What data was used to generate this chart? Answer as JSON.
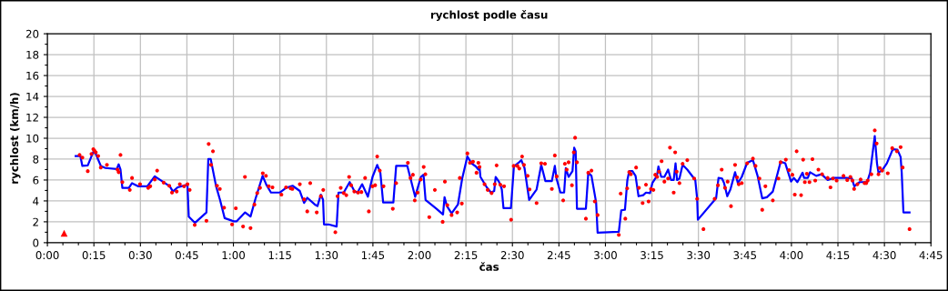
{
  "chart_data": {
    "type": "line",
    "title": "rychlost podle času",
    "xlabel": "čas",
    "ylabel": "rychlost (km/h)",
    "xlim": [
      0,
      4.75
    ],
    "ylim": [
      0,
      20
    ],
    "xticks": [
      {
        "value": 0,
        "label": "0:00"
      },
      {
        "value": 0.0833,
        "label": null
      },
      {
        "value": 0.1667,
        "label": null
      },
      {
        "value": 0.25,
        "label": "0:15"
      },
      {
        "value": 0.3333,
        "label": null
      },
      {
        "value": 0.4167,
        "label": null
      },
      {
        "value": 0.5,
        "label": "0:30"
      },
      {
        "value": 0.5833,
        "label": null
      },
      {
        "value": 0.6667,
        "label": null
      },
      {
        "value": 0.75,
        "label": "0:45"
      },
      {
        "value": 0.8333,
        "label": null
      },
      {
        "value": 0.9167,
        "label": null
      },
      {
        "value": 1,
        "label": "1:00"
      },
      {
        "value": 1.0833,
        "label": null
      },
      {
        "value": 1.1667,
        "label": null
      },
      {
        "value": 1.25,
        "label": "1:15"
      },
      {
        "value": 1.3333,
        "label": null
      },
      {
        "value": 1.4167,
        "label": null
      },
      {
        "value": 1.5,
        "label": "1:30"
      },
      {
        "value": 1.5833,
        "label": null
      },
      {
        "value": 1.6667,
        "label": null
      },
      {
        "value": 1.75,
        "label": "1:45"
      },
      {
        "value": 1.8333,
        "label": null
      },
      {
        "value": 1.9167,
        "label": null
      },
      {
        "value": 2,
        "label": "2:00"
      },
      {
        "value": 2.0833,
        "label": null
      },
      {
        "value": 2.1667,
        "label": null
      },
      {
        "value": 2.25,
        "label": "2:15"
      },
      {
        "value": 2.3333,
        "label": null
      },
      {
        "value": 2.4167,
        "label": null
      },
      {
        "value": 2.5,
        "label": "2:30"
      },
      {
        "value": 2.5833,
        "label": null
      },
      {
        "value": 2.6667,
        "label": null
      },
      {
        "value": 2.75,
        "label": "2:45"
      },
      {
        "value": 2.8333,
        "label": null
      },
      {
        "value": 2.9167,
        "label": null
      },
      {
        "value": 3,
        "label": "3:00"
      },
      {
        "value": 3.0833,
        "label": null
      },
      {
        "value": 3.1667,
        "label": null
      },
      {
        "value": 3.25,
        "label": "3:15"
      },
      {
        "value": 3.3333,
        "label": null
      },
      {
        "value": 3.4167,
        "label": null
      },
      {
        "value": 3.5,
        "label": "3:30"
      },
      {
        "value": 3.5833,
        "label": null
      },
      {
        "value": 3.6667,
        "label": null
      },
      {
        "value": 3.75,
        "label": "3:45"
      },
      {
        "value": 3.8333,
        "label": null
      },
      {
        "value": 3.9167,
        "label": null
      },
      {
        "value": 4,
        "label": "4:00"
      },
      {
        "value": 4.0833,
        "label": null
      },
      {
        "value": 4.1667,
        "label": null
      },
      {
        "value": 4.25,
        "label": "4:15"
      },
      {
        "value": 4.3333,
        "label": null
      },
      {
        "value": 4.4167,
        "label": null
      },
      {
        "value": 4.5,
        "label": "4:30"
      },
      {
        "value": 4.5833,
        "label": null
      },
      {
        "value": 4.6667,
        "label": null
      },
      {
        "value": 4.75,
        "label": "4:45"
      }
    ],
    "yticks": [
      0,
      {
        "value": 1,
        "label": null
      },
      2,
      {
        "value": 3,
        "label": null
      },
      4,
      {
        "value": 5,
        "label": null
      },
      6,
      {
        "value": 7,
        "label": null
      },
      8,
      {
        "value": 9,
        "label": null
      },
      10,
      {
        "value": 11,
        "label": null
      },
      12,
      {
        "value": 13,
        "label": null
      },
      14,
      {
        "value": 15,
        "label": null
      },
      16,
      {
        "value": 17,
        "label": null
      },
      18,
      {
        "value": 19,
        "label": null
      },
      20
    ],
    "grid": true,
    "series": [
      {
        "color": "#0000ff",
        "marker": "none",
        "line_style": "solid",
        "x": [
          0.152,
          0.177,
          0.188,
          0.217,
          0.247,
          0.26,
          0.287,
          0.312,
          0.373,
          0.383,
          0.393,
          0.403,
          0.438,
          0.455,
          0.487,
          0.537,
          0.577,
          0.658,
          0.675,
          0.7,
          0.743,
          0.753,
          0.76,
          0.793,
          0.855,
          0.865,
          0.878,
          0.907,
          0.928,
          0.953,
          1.002,
          1.018,
          1.063,
          1.092,
          1.117,
          1.157,
          1.177,
          1.202,
          1.25,
          1.283,
          1.318,
          1.357,
          1.38,
          1.397,
          1.438,
          1.452,
          1.47,
          1.482,
          1.487,
          1.512,
          1.555,
          1.565,
          1.593,
          1.625,
          1.65,
          1.667,
          1.692,
          1.723,
          1.748,
          1.773,
          1.79,
          1.805,
          1.86,
          1.875,
          1.935,
          1.977,
          2.008,
          2.022,
          2.033,
          2.092,
          2.127,
          2.135,
          2.148,
          2.173,
          2.207,
          2.23,
          2.258,
          2.28,
          2.303,
          2.317,
          2.323,
          2.328,
          2.362,
          2.385,
          2.402,
          2.41,
          2.427,
          2.435,
          2.443,
          2.452,
          2.492,
          2.508,
          2.533,
          2.548,
          2.565,
          2.59,
          2.63,
          2.655,
          2.677,
          2.712,
          2.728,
          2.737,
          2.758,
          2.778,
          2.787,
          2.802,
          2.823,
          2.832,
          2.84,
          2.847,
          2.895,
          2.908,
          2.925,
          2.95,
          2.958,
          3.072,
          3.085,
          3.105,
          3.118,
          3.128,
          3.145,
          3.162,
          3.178,
          3.203,
          3.218,
          3.24,
          3.252,
          3.277,
          3.285,
          3.3,
          3.317,
          3.337,
          3.353,
          3.367,
          3.377,
          3.385,
          3.398,
          3.415,
          3.44,
          3.483,
          3.493,
          3.497,
          3.595,
          3.608,
          3.627,
          3.638,
          3.655,
          3.672,
          3.697,
          3.712,
          3.733,
          3.762,
          3.793,
          3.818,
          3.843,
          3.868,
          3.9,
          3.942,
          3.967,
          3.998,
          4.013,
          4.032,
          4.06,
          4.068,
          4.088,
          4.1,
          4.133,
          4.162,
          4.195,
          4.227,
          4.292,
          4.325,
          4.338,
          4.367,
          4.407,
          4.423,
          4.448,
          4.46,
          4.468,
          4.488,
          4.513,
          4.545,
          4.57,
          4.587,
          4.593,
          4.602,
          4.635
        ],
        "values": [
          8.3,
          8.3,
          7.35,
          7.4,
          8.7,
          8.5,
          7.35,
          7.15,
          7.05,
          7.5,
          7.0,
          5.25,
          5.25,
          5.7,
          5.4,
          5.4,
          6.35,
          5.4,
          4.9,
          5.3,
          5.5,
          5.5,
          2.5,
          1.9,
          2.9,
          8.0,
          8.0,
          5.4,
          4.1,
          2.35,
          2.05,
          2.05,
          2.9,
          2.5,
          4.1,
          6.4,
          5.55,
          4.8,
          4.8,
          5.25,
          5.45,
          4.95,
          3.8,
          4.3,
          3.65,
          3.5,
          4.6,
          4.1,
          1.75,
          1.75,
          1.55,
          4.8,
          4.8,
          5.8,
          4.95,
          4.8,
          5.6,
          4.4,
          6.3,
          7.45,
          6.7,
          3.85,
          3.85,
          7.35,
          7.35,
          4.4,
          6.3,
          6.5,
          4.1,
          3.25,
          2.7,
          4.35,
          3.5,
          2.8,
          3.65,
          6.15,
          8.25,
          7.6,
          7.3,
          7.0,
          7.3,
          6.3,
          5.3,
          4.8,
          4.95,
          6.3,
          5.85,
          5.55,
          5.1,
          3.3,
          3.3,
          7.3,
          7.65,
          7.9,
          7.15,
          4.1,
          5.1,
          7.45,
          5.9,
          5.9,
          7.35,
          6.15,
          4.8,
          4.8,
          7.15,
          6.3,
          6.85,
          9.1,
          8.75,
          3.25,
          3.25,
          6.7,
          6.4,
          3.85,
          0.95,
          1.05,
          3.1,
          3.15,
          6.0,
          6.85,
          6.85,
          6.4,
          4.45,
          4.55,
          4.8,
          4.75,
          5.7,
          6.4,
          7.3,
          6.3,
          6.3,
          7.0,
          6.0,
          6.0,
          7.6,
          6.0,
          6.15,
          7.45,
          7.0,
          6.0,
          4.25,
          2.2,
          4.25,
          6.2,
          6.15,
          5.7,
          4.45,
          5.1,
          6.75,
          5.7,
          6.3,
          7.65,
          7.9,
          6.4,
          4.25,
          4.35,
          4.9,
          7.75,
          7.6,
          5.85,
          6.2,
          5.8,
          6.7,
          6.2,
          6.2,
          6.75,
          6.4,
          6.55,
          6.0,
          6.2,
          6.2,
          6.15,
          5.4,
          5.8,
          5.8,
          6.7,
          10.2,
          7.6,
          6.7,
          6.95,
          7.6,
          8.95,
          8.9,
          8.2,
          6.7,
          2.9,
          2.9
        ]
      },
      {
        "type": "scatter",
        "color": "#ff0000",
        "marker": "circle",
        "x": [
          0.173,
          0.188,
          0.217,
          0.237,
          0.247,
          0.253,
          0.26,
          0.273,
          0.287,
          0.32,
          0.377,
          0.383,
          0.393,
          0.403,
          0.443,
          0.455,
          0.498,
          0.542,
          0.553,
          0.577,
          0.59,
          0.625,
          0.655,
          0.67,
          0.695,
          0.712,
          0.735,
          0.753,
          0.765,
          0.792,
          0.855,
          0.867,
          0.88,
          0.89,
          0.912,
          0.927,
          0.95,
          0.993,
          1.013,
          1.052,
          1.062,
          1.092,
          1.113,
          1.128,
          1.143,
          1.158,
          1.175,
          1.19,
          1.21,
          1.258,
          1.283,
          1.307,
          1.317,
          1.357,
          1.38,
          1.397,
          1.413,
          1.448,
          1.47,
          1.483,
          1.548,
          1.56,
          1.577,
          1.593,
          1.607,
          1.622,
          1.633,
          1.65,
          1.67,
          1.688,
          1.708,
          1.728,
          1.748,
          1.762,
          1.773,
          1.787,
          1.807,
          1.857,
          1.875,
          1.938,
          1.952,
          1.965,
          1.975,
          1.99,
          2.007,
          2.023,
          2.032,
          2.053,
          2.083,
          2.125,
          2.137,
          2.15,
          2.173,
          2.203,
          2.217,
          2.228,
          2.258,
          2.272,
          2.288,
          2.307,
          2.317,
          2.323,
          2.35,
          2.367,
          2.388,
          2.405,
          2.415,
          2.435,
          2.455,
          2.493,
          2.507,
          2.527,
          2.537,
          2.552,
          2.562,
          2.582,
          2.592,
          2.63,
          2.655,
          2.675,
          2.712,
          2.728,
          2.738,
          2.773,
          2.782,
          2.792,
          2.802,
          2.82,
          2.83,
          2.837,
          2.847,
          2.895,
          2.908,
          2.925,
          2.943,
          2.958,
          3.072,
          3.082,
          3.107,
          3.117,
          3.128,
          3.137,
          3.165,
          3.18,
          3.2,
          3.218,
          3.232,
          3.245,
          3.258,
          3.268,
          3.278,
          3.288,
          3.302,
          3.317,
          3.337,
          3.347,
          3.367,
          3.375,
          3.383,
          3.398,
          3.415,
          3.44,
          3.477,
          3.493,
          3.527,
          3.587,
          3.605,
          3.625,
          3.643,
          3.657,
          3.675,
          3.697,
          3.708,
          3.717,
          3.733,
          3.762,
          3.793,
          3.807,
          3.828,
          3.843,
          3.86,
          3.9,
          3.93,
          3.942,
          3.97,
          3.987,
          4.005,
          4.018,
          4.028,
          4.052,
          4.063,
          4.072,
          4.083,
          4.097,
          4.113,
          4.128,
          4.145,
          4.165,
          4.195,
          4.21,
          4.223,
          4.243,
          4.28,
          4.3,
          4.317,
          4.328,
          4.337,
          4.355,
          4.372,
          4.393,
          4.402,
          4.41,
          4.43,
          4.448,
          4.458,
          4.468,
          4.475,
          4.488,
          4.518,
          4.542,
          4.567,
          4.587,
          4.598,
          4.635
        ],
        "values": [
          8.4,
          8.15,
          6.85,
          8.5,
          8.95,
          8.8,
          8.65,
          8.3,
          7.2,
          7.45,
          7.0,
          6.75,
          8.4,
          5.8,
          5.05,
          6.2,
          5.6,
          5.25,
          5.4,
          6.05,
          6.9,
          5.75,
          5.45,
          4.8,
          4.9,
          5.6,
          5.4,
          5.6,
          5.05,
          1.7,
          2.1,
          9.45,
          7.45,
          8.75,
          5.45,
          5.15,
          3.35,
          1.75,
          3.3,
          1.55,
          6.3,
          1.4,
          3.65,
          4.75,
          5.25,
          6.65,
          6.4,
          5.4,
          5.3,
          4.6,
          5.3,
          5.2,
          5.15,
          5.6,
          4.15,
          3.0,
          5.7,
          2.9,
          4.45,
          5.05,
          1.0,
          4.45,
          5.25,
          4.75,
          4.55,
          6.3,
          5.5,
          4.9,
          4.8,
          4.85,
          6.2,
          3.0,
          5.4,
          5.5,
          8.25,
          6.9,
          5.4,
          3.25,
          5.7,
          7.65,
          6.2,
          6.5,
          4.05,
          4.8,
          6.05,
          7.25,
          6.55,
          2.45,
          5.05,
          2.0,
          5.85,
          3.6,
          2.65,
          2.9,
          6.2,
          3.75,
          8.55,
          7.65,
          7.75,
          6.7,
          7.65,
          7.25,
          5.6,
          5.05,
          4.75,
          5.6,
          7.4,
          5.55,
          5.4,
          2.2,
          7.35,
          7.35,
          7.1,
          8.25,
          7.45,
          6.4,
          5.1,
          3.8,
          7.6,
          7.55,
          5.15,
          8.35,
          6.35,
          4.05,
          7.55,
          7.0,
          7.7,
          5.5,
          8.65,
          10.05,
          7.7,
          2.3,
          6.7,
          6.9,
          3.95,
          2.65,
          0.75,
          4.7,
          2.3,
          5.2,
          6.75,
          6.55,
          7.2,
          5.25,
          3.8,
          5.55,
          3.95,
          5.15,
          5.05,
          6.5,
          6.3,
          6.8,
          7.8,
          5.85,
          6.15,
          9.1,
          4.8,
          8.65,
          6.8,
          5.7,
          7.55,
          7.9,
          6.15,
          4.2,
          1.3,
          4.2,
          5.5,
          7.0,
          5.25,
          5.85,
          3.5,
          7.45,
          6.25,
          5.6,
          5.7,
          7.6,
          8.05,
          7.35,
          6.15,
          3.15,
          5.4,
          4.05,
          6.15,
          7.7,
          7.95,
          6.95,
          6.5,
          4.6,
          8.75,
          4.55,
          7.95,
          5.8,
          6.6,
          5.8,
          8.0,
          5.95,
          7.0,
          6.55,
          6.2,
          5.3,
          6.15,
          5.95,
          6.4,
          6.0,
          6.3,
          5.95,
          5.15,
          5.6,
          6.05,
          5.7,
          5.7,
          5.95,
          6.55,
          10.75,
          9.5,
          6.55,
          7.15,
          6.9,
          6.65,
          9.05,
          8.75,
          9.15,
          7.2,
          1.3
        ]
      },
      {
        "type": "scatter",
        "color": "#ff0000",
        "marker": "triangle",
        "x": [
          0.09
        ],
        "values": [
          0.9
        ]
      }
    ]
  }
}
